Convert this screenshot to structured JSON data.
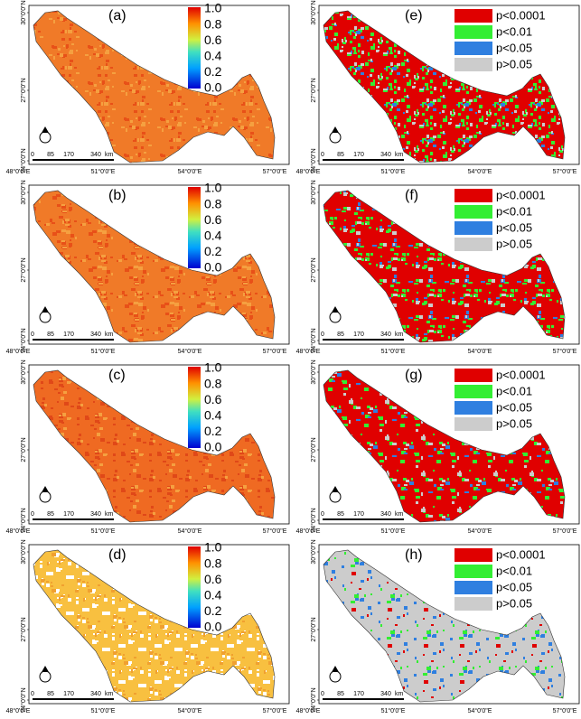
{
  "panels": [
    {
      "label": "(a)"
    },
    {
      "label": "(e)"
    },
    {
      "label": "(b)"
    },
    {
      "label": "(f)"
    },
    {
      "label": "(c)"
    },
    {
      "label": "(g)"
    },
    {
      "label": "(d)"
    },
    {
      "label": "(h)"
    }
  ],
  "colorbar": {
    "ticks": [
      "1.0",
      "0.8",
      "0.6",
      "0.4",
      "0.2",
      "0.0"
    ]
  },
  "legend": {
    "items": [
      {
        "label": "p<0.0001",
        "color": "#e00000"
      },
      {
        "label": "p<0.01",
        "color": "#33ee33"
      },
      {
        "label": "p<0.05",
        "color": "#2f7fe0"
      },
      {
        "label": "p>0.05",
        "color": "#cccccc"
      }
    ]
  },
  "axes": {
    "lat": [
      "30°0'0\"N",
      "27°0'0\"N",
      "24°0'0\"N"
    ],
    "lon": [
      "48°0'0\"E",
      "51°0'0\"E",
      "54°0'0\"E",
      "57°0'0\"E"
    ]
  },
  "scale_bar": {
    "ticks": [
      "0",
      "85",
      "170",
      "340"
    ],
    "unit": "km"
  }
}
